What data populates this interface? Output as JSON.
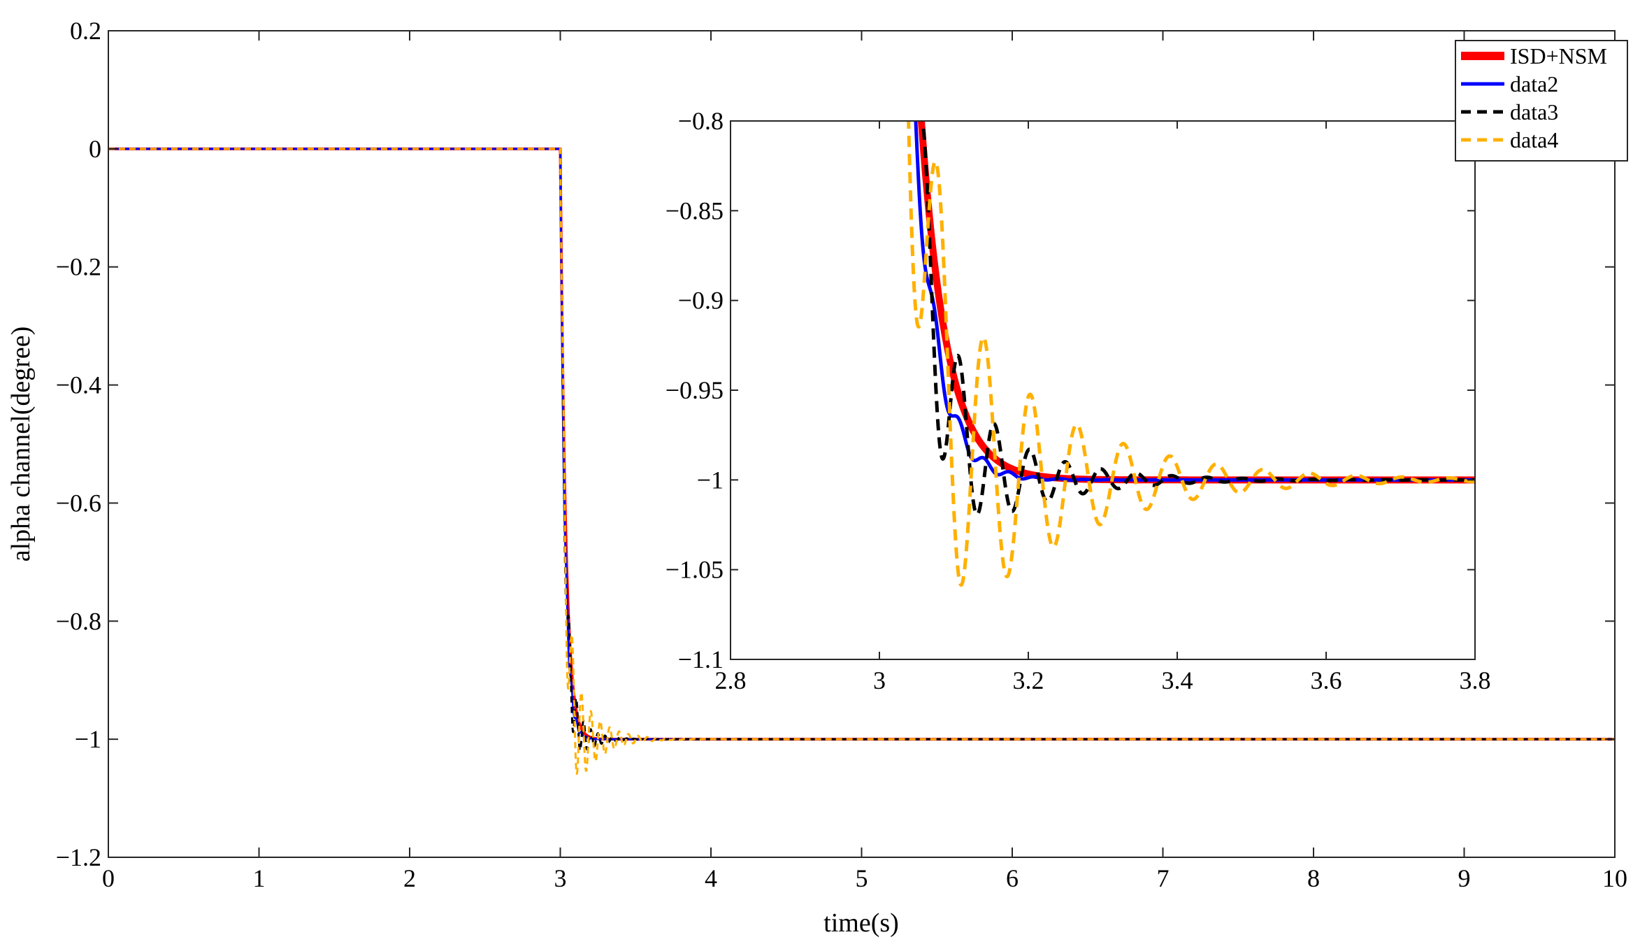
{
  "chart_data": [
    {
      "id": "main",
      "type": "line",
      "title": "",
      "xlabel": "time(s)",
      "ylabel": "alpha channel(degree)",
      "xlim": [
        0,
        10
      ],
      "ylim": [
        -1.2,
        0.2
      ],
      "xticks": [
        0,
        1,
        2,
        3,
        4,
        5,
        6,
        7,
        8,
        9,
        10
      ],
      "yticks": [
        0.2,
        0,
        -0.2,
        -0.4,
        -0.6,
        -0.8,
        -1,
        -1.2
      ],
      "xtick_labels": [
        "0",
        "1",
        "2",
        "3",
        "4",
        "5",
        "6",
        "7",
        "8",
        "9",
        "10"
      ],
      "ytick_labels": [
        "0.2",
        "0",
        "−0.2",
        "−0.4",
        "−0.6",
        "−0.8",
        "−1",
        "−1.2"
      ],
      "grid": false,
      "legend_position": "top-right",
      "series": [
        {
          "name": "ISD+NSM",
          "color": "#ff0000",
          "style": "solid",
          "response": {
            "step_time": 3.0,
            "initial": 0,
            "final": -1,
            "tau": 0.035,
            "amp": 0.0,
            "freq": 0,
            "decay": 1
          }
        },
        {
          "name": "data2",
          "color": "#0000ff",
          "style": "solid",
          "response": {
            "step_time": 3.0,
            "initial": 0,
            "final": -1,
            "tau": 0.03,
            "amp": 0.05,
            "freq": 30,
            "decay": 0.05
          }
        },
        {
          "name": "data3",
          "color": "#000000",
          "style": "dashed",
          "response": {
            "step_time": 3.0,
            "initial": 0,
            "final": -1,
            "tau": 0.03,
            "amp": 0.12,
            "freq": 21,
            "decay": 0.1
          }
        },
        {
          "name": "data4",
          "color": "#ffb000",
          "style": "dashed",
          "response": {
            "step_time": 3.0,
            "initial": 0,
            "final": -1,
            "tau": 0.03,
            "amp": 0.18,
            "freq": 16,
            "decay": 0.15
          }
        }
      ]
    },
    {
      "id": "inset",
      "type": "line",
      "title": "",
      "xlabel": "",
      "ylabel": "",
      "xlim": [
        2.8,
        3.8
      ],
      "ylim": [
        -1.1,
        -0.8
      ],
      "xticks": [
        2.8,
        3,
        3.2,
        3.4,
        3.6,
        3.8
      ],
      "yticks": [
        -0.8,
        -0.85,
        -0.9,
        -0.95,
        -1,
        -1.05,
        -1.1
      ],
      "xtick_labels": [
        "2.8",
        "3",
        "3.2",
        "3.4",
        "3.6",
        "3.8"
      ],
      "ytick_labels": [
        "−0.8",
        "−0.85",
        "−0.9",
        "−0.95",
        "−1",
        "−1.05",
        "−1.1"
      ],
      "grid": false
    }
  ],
  "legend": {
    "entries": [
      {
        "label": "ISD+NSM",
        "color": "#ff0000",
        "style": "solid"
      },
      {
        "label": "data2",
        "color": "#0000ff",
        "style": "solid"
      },
      {
        "label": "data3",
        "color": "#000000",
        "style": "dashed"
      },
      {
        "label": "data4",
        "color": "#ffb000",
        "style": "dashed"
      }
    ]
  }
}
